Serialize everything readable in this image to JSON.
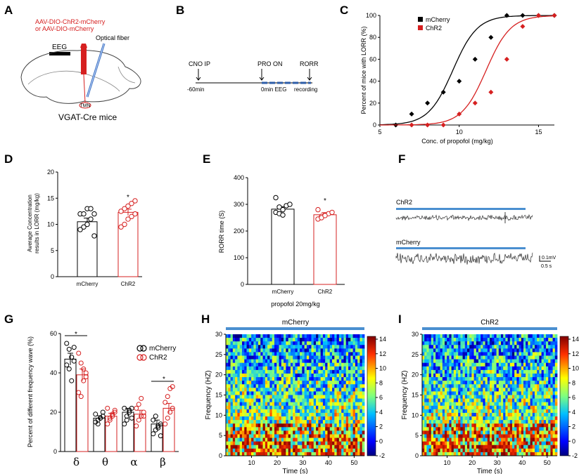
{
  "panels": {
    "A": {
      "label": "A",
      "virus_line1": "AAV-DIO-ChR2-mCherry",
      "virus_line2": "or AAV-DIO-mCherry",
      "optical_fiber": "Optical fiber",
      "eeg": "EEG",
      "tmn": "TMN",
      "caption": "VGAT-Cre mice"
    },
    "B": {
      "label": "B",
      "cno": "CNO IP",
      "pro_on": "PRO ON",
      "rorr": "RORR",
      "t_start": "-60min",
      "t_zero": "0min EEG",
      "recording": "recording"
    },
    "C": {
      "label": "C"
    },
    "D": {
      "label": "D"
    },
    "E": {
      "label": "E"
    },
    "F": {
      "label": "F",
      "trace1": "ChR2",
      "trace2": "mCherry",
      "scale_v": "0.1mV",
      "scale_t": "0.5 s"
    },
    "G": {
      "label": "G"
    },
    "H": {
      "label": "H"
    },
    "I": {
      "label": "I"
    }
  },
  "chart_data": [
    {
      "id": "C",
      "type": "scatter",
      "title": "",
      "xlabel": "Conc. of propofol (mg/kg)",
      "ylabel": "Percent of mice with LORR (%)",
      "xlim": [
        5,
        16
      ],
      "ylim": [
        0,
        100
      ],
      "xticks": [
        "5",
        "10",
        "15"
      ],
      "yticks": [
        "0",
        "20",
        "40",
        "60",
        "80",
        "100"
      ],
      "series": [
        {
          "name": "mCherry",
          "color": "#000000",
          "marker": "diamond",
          "x": [
            6,
            7,
            8,
            9,
            10,
            11,
            12,
            13,
            14,
            15,
            16
          ],
          "y": [
            0,
            10,
            20,
            30,
            40,
            60,
            80,
            100,
            100,
            100,
            100
          ]
        },
        {
          "name": "ChR2",
          "color": "#d62020",
          "marker": "diamond",
          "x": [
            7,
            8,
            9,
            10,
            11,
            12,
            13,
            14,
            15,
            16
          ],
          "y": [
            0,
            0,
            0,
            10,
            20,
            30,
            60,
            90,
            100,
            100
          ]
        }
      ]
    },
    {
      "id": "D",
      "type": "bar",
      "ylabel_lines": [
        "Average Concentration",
        "results in LORR (mg/kg)"
      ],
      "ylim": [
        0,
        20
      ],
      "yticks": [
        "0",
        "5",
        "10",
        "15",
        "20"
      ],
      "categories": [
        "mCherry",
        "ChR2"
      ],
      "values": [
        10.5,
        12.3
      ],
      "sem": [
        0.7,
        0.6
      ],
      "colors": [
        "#000000",
        "#d62020"
      ],
      "points": [
        [
          9,
          9.5,
          10,
          11,
          12,
          12,
          12,
          13,
          13,
          7.8
        ],
        [
          9.5,
          10,
          11,
          11.5,
          12,
          12.5,
          13,
          13.5,
          14,
          14.5
        ]
      ],
      "annotation": "*"
    },
    {
      "id": "E",
      "type": "bar",
      "ylabel": "RORR time (S)",
      "xlabel": "propofol 20mg/kg",
      "ylim": [
        0,
        400
      ],
      "yticks": [
        "0",
        "100",
        "200",
        "300",
        "400"
      ],
      "categories": [
        "mCherry",
        "ChR2"
      ],
      "values": [
        282,
        261
      ],
      "sem": [
        9,
        8
      ],
      "colors": [
        "#000000",
        "#d62020"
      ],
      "points": [
        [
          270,
          265,
          280,
          295,
          300,
          325,
          290,
          260
        ],
        [
          245,
          255,
          260,
          265,
          270,
          280,
          250,
          258
        ]
      ],
      "annotation": "*"
    },
    {
      "id": "G",
      "type": "bar",
      "ylabel": "Percent of different frequency wave (%)",
      "ylim": [
        0,
        60
      ],
      "yticks": [
        "0",
        "20",
        "40",
        "60"
      ],
      "categories": [
        "δ",
        "θ",
        "α",
        "β"
      ],
      "legend": [
        "mCherry",
        "ChR2"
      ],
      "series": [
        {
          "name": "mCherry",
          "color": "#000000",
          "values": [
            47,
            17,
            20,
            14
          ],
          "sem": [
            3,
            1.2,
            2,
            2
          ],
          "points": [
            [
              55,
              52,
              48,
              46,
              44,
              42,
              36,
              53
            ],
            [
              15,
              16,
              17,
              18,
              19,
              14,
              17,
              20
            ],
            [
              14,
              18,
              20,
              22,
              22,
              16,
              21,
              17
            ],
            [
              9,
              11,
              12,
              14,
              16,
              18,
              13,
              8
            ]
          ]
        },
        {
          "name": "ChR2",
          "color": "#d62020",
          "values": [
            39,
            18,
            19,
            22
          ],
          "sem": [
            3,
            1.5,
            2,
            2.5
          ],
          "points": [
            [
              50,
              45,
              42,
              38,
              30,
              28,
              36,
              40
            ],
            [
              14,
              16,
              18,
              20,
              22,
              17,
              19,
              21
            ],
            [
              13,
              16,
              18,
              20,
              22,
              24,
              27,
              18
            ],
            [
              14,
              17,
              20,
              22,
              25,
              28,
              32,
              33
            ]
          ]
        }
      ],
      "annotations": [
        "*",
        "*"
      ]
    },
    {
      "id": "H",
      "type": "heatmap",
      "title": "mCherry",
      "xlabel": "Time (s)",
      "ylabel": "Frequency (HZ)",
      "xticks": [
        "10",
        "20",
        "30",
        "40",
        "50"
      ],
      "yticks": [
        "0",
        "5",
        "10",
        "15",
        "20",
        "25",
        "30"
      ],
      "colorbar_ticks": [
        "-2",
        "0",
        "2",
        "4",
        "6",
        "8",
        "10",
        "12",
        "14"
      ]
    },
    {
      "id": "I",
      "type": "heatmap",
      "title": "ChR2",
      "xlabel": "Time (s)",
      "ylabel": "Frequency (HZ)",
      "xticks": [
        "10",
        "20",
        "30",
        "40",
        "50"
      ],
      "yticks": [
        "0",
        "5",
        "10",
        "15",
        "20",
        "25",
        "30"
      ],
      "colorbar_ticks": [
        "-2",
        "0",
        "2",
        "4",
        "6",
        "8",
        "10",
        "12",
        "14"
      ]
    }
  ]
}
